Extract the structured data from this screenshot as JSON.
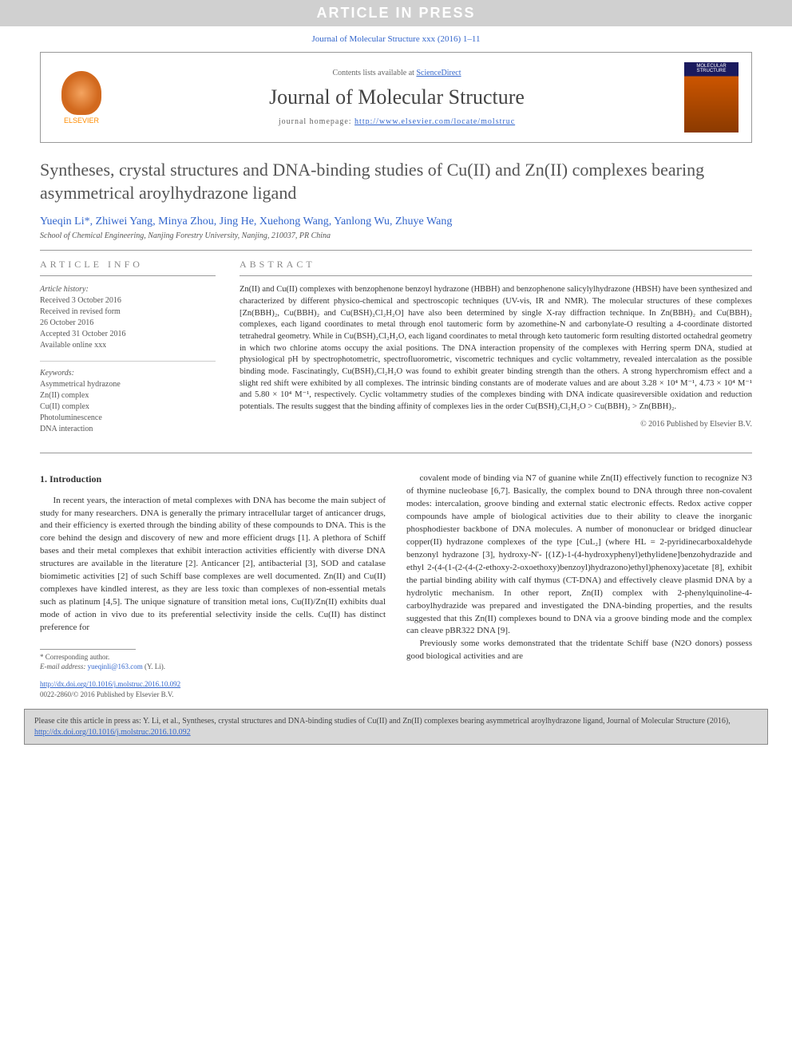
{
  "banner": {
    "text": "ARTICLE IN PRESS"
  },
  "citation_header": "Journal of Molecular Structure xxx (2016) 1–11",
  "header_box": {
    "contents_prefix": "Contents lists available at ",
    "contents_link": "ScienceDirect",
    "journal_name": "Journal of Molecular Structure",
    "homepage_prefix": "journal homepage: ",
    "homepage_url": "http://www.elsevier.com/locate/molstruc",
    "elsevier_label": "ELSEVIER",
    "cover_label": "MOLECULAR STRUCTURE"
  },
  "title": "Syntheses, crystal structures and DNA-binding studies of Cu(II) and Zn(II) complexes bearing asymmetrical aroylhydrazone ligand",
  "authors": "Yueqin Li*, Zhiwei Yang, Minya Zhou, Jing He, Xuehong Wang, Yanlong Wu, Zhuye Wang",
  "affiliation": "School of Chemical Engineering, Nanjing Forestry University, Nanjing, 210037, PR China",
  "article_info": {
    "heading": "ARTICLE INFO",
    "history_label": "Article history:",
    "history_lines": [
      "Received 3 October 2016",
      "Received in revised form",
      "26 October 2016",
      "Accepted 31 October 2016",
      "Available online xxx"
    ],
    "keywords_label": "Keywords:",
    "keywords": [
      "Asymmetrical hydrazone",
      "Zn(II) complex",
      "Cu(II) complex",
      "Photoluminescence",
      "DNA interaction"
    ]
  },
  "abstract": {
    "heading": "ABSTRACT",
    "text": "Zn(II) and Cu(II) complexes with benzophenone benzoyl hydrazone (HBBH) and benzophenone salicylylhydrazone (HBSH) have been synthesized and characterized by different physico-chemical and spectroscopic techniques (UV-vis, IR and NMR). The molecular structures of these complexes [Zn(BBH)₂, Cu(BBH)₂ and Cu(BSH)₂Cl₂H₂O] have also been determined by single X-ray diffraction technique. In Zn(BBH)₂ and Cu(BBH)₂ complexes, each ligand coordinates to metal through enol tautomeric form by azomethine-N and carbonylate-O resulting a 4-coordinate distorted tetrahedral geometry. While in Cu(BSH)₂Cl₂H₂O, each ligand coordinates to metal through keto tautomeric form resulting distorted octahedral geometry in which two chlorine atoms occupy the axial positions. The DNA interaction propensity of the complexes with Herring sperm DNA, studied at physiological pH by spectrophotometric, spectrofluorometric, viscometric techniques and cyclic voltammetry, revealed intercalation as the possible binding mode. Fascinatingly, Cu(BSH)₂Cl₂H₂O was found to exhibit greater binding strength than the others. A strong hyperchromism effect and a slight red shift were exhibited by all complexes. The intrinsic binding constants are of moderate values and are about 3.28 × 10⁴ M⁻¹, 4.73 × 10⁴ M⁻¹ and 5.80 × 10⁴ M⁻¹, respectively. Cyclic voltammetry studies of the complexes binding with DNA indicate quasireversible oxidation and reduction potentials. The results suggest that the binding affinity of complexes lies in the order Cu(BSH)₂Cl₂H₂O > Cu(BBH)₂ > Zn(BBH)₂.",
    "copyright": "© 2016 Published by Elsevier B.V."
  },
  "intro": {
    "heading": "1. Introduction",
    "col1": "In recent years, the interaction of metal complexes with DNA has become the main subject of study for many researchers. DNA is generally the primary intracellular target of anticancer drugs, and their efficiency is exerted through the binding ability of these compounds to DNA. This is the core behind the design and discovery of new and more efficient drugs [1]. A plethora of Schiff bases and their metal complexes that exhibit interaction activities efficiently with diverse DNA structures are available in the literature [2]. Anticancer [2], antibacterial [3], SOD and catalase biomimetic activities [2] of such Schiff base complexes are well documented. Zn(II) and Cu(II) complexes have kindled interest, as they are less toxic than complexes of non-essential metals such as platinum [4,5]. The unique signature of transition metal ions, Cu(II)/Zn(II) exhibits dual mode of action in vivo due to its preferential selectivity inside the cells. Cu(II) has distinct preference for",
    "col2_p1": "covalent mode of binding via N7 of guanine while Zn(II) effectively function to recognize N3 of thymine nucleobase [6,7]. Basically, the complex bound to DNA through three non-covalent modes: intercalation, groove binding and external static electronic effects. Redox active copper compounds have ample of biological activities due to their ability to cleave the inorganic phosphodiester backbone of DNA molecules. A number of mononuclear or bridged dinuclear copper(II) hydrazone complexes of the type [CuL₂] (where HL = 2-pyridinecarboxaldehyde benzonyl hydrazone [3], hydroxy-N'- [(1Z)-1-(4-hydroxyphenyl)ethylidene]benzohydrazide and ethyl 2-(4-(1-(2-(4-(2-ethoxy-2-oxoethoxy)benzoyl)hydrazono)ethyl)phenoxy)acetate [8], exhibit the partial binding ability with calf thymus (CT-DNA) and effectively cleave plasmid DNA by a hydrolytic mechanism. In other report, Zn(II) complex with 2-phenylquinoline-4-carboylhydrazide was prepared and investigated the DNA-binding properties, and the results suggested that this Zn(II) complexes bound to DNA via a groove binding mode and the complex can cleave pBR322 DNA [9].",
    "col2_p2": "Previously some works demonstrated that the tridentate Schiff base (N2O donors) possess good biological activities and are"
  },
  "footnote": {
    "corr": "* Corresponding author.",
    "email_prefix": "E-mail address: ",
    "email": "yueqinli@163.com",
    "email_suffix": " (Y. Li)."
  },
  "doi": {
    "url": "http://dx.doi.org/10.1016/j.molstruc.2016.10.092",
    "issn": "0022-2860/© 2016 Published by Elsevier B.V."
  },
  "cite_box": {
    "text_prefix": "Please cite this article in press as: Y. Li, et al., Syntheses, crystal structures and DNA-binding studies of Cu(II) and Zn(II) complexes bearing asymmetrical aroylhydrazone ligand, Journal of Molecular Structure (2016), ",
    "url": "http://dx.doi.org/10.1016/j.molstruc.2016.10.092"
  },
  "colors": {
    "link": "#3366cc",
    "banner_bg": "#d0d0d0",
    "cite_bg": "#d8d8d8"
  }
}
